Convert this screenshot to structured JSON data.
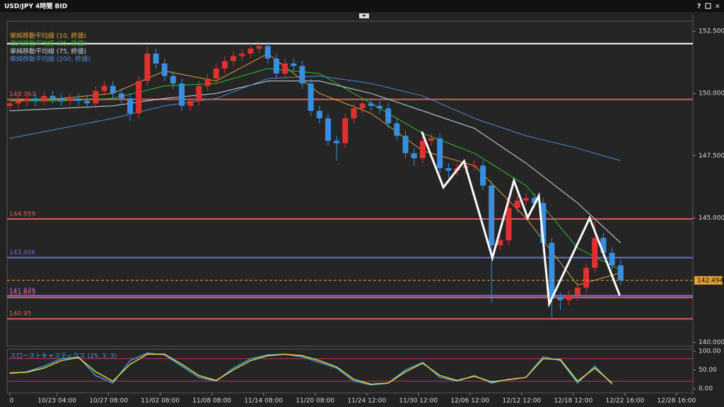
{
  "window": {
    "title": "USD/JPY 4時間 BID",
    "help": "?"
  },
  "chart_data": [
    {
      "type": "candlestick",
      "up_color": "#e03030",
      "down_color": "#3a8ee0",
      "open": [
        149.5,
        149.6,
        149.7,
        149.8,
        149.7,
        149.9,
        149.8,
        149.7,
        149.8,
        149.7,
        149.6,
        150.1,
        150.3,
        150.0,
        149.8,
        149.2,
        150.5,
        151.6,
        151.2,
        150.7,
        150.4,
        149.5,
        149.7,
        150.3,
        150.6,
        151.0,
        151.3,
        151.5,
        151.6,
        151.8,
        151.9,
        151.4,
        150.8,
        151.2,
        151.1,
        150.4,
        149.3,
        149.0,
        148.1,
        148.0,
        149.0,
        149.4,
        149.6,
        149.5,
        149.4,
        148.8,
        148.3,
        147.6,
        147.4,
        148.1,
        148.2,
        147.0,
        146.9,
        147.0,
        147.1,
        147.1,
        146.3,
        143.9,
        144.1,
        145.4,
        145.7,
        145.8,
        145.6,
        144.0,
        141.8,
        141.7,
        141.9,
        142.2,
        143.0,
        144.2,
        143.6,
        143.1
      ],
      "high": [
        149.8,
        149.9,
        150.0,
        150.0,
        150.1,
        150.1,
        150.0,
        150.0,
        150.0,
        149.9,
        150.3,
        150.5,
        150.5,
        150.2,
        150.0,
        150.7,
        151.9,
        151.8,
        151.4,
        150.9,
        150.6,
        149.9,
        150.5,
        150.8,
        151.2,
        151.5,
        151.7,
        151.8,
        152.0,
        152.1,
        152.1,
        151.6,
        151.4,
        151.4,
        151.3,
        150.6,
        149.5,
        149.2,
        148.3,
        149.2,
        149.6,
        149.8,
        149.8,
        149.7,
        149.6,
        149.0,
        148.5,
        147.8,
        148.3,
        148.4,
        148.4,
        147.2,
        147.2,
        147.3,
        147.3,
        147.3,
        146.5,
        144.3,
        145.6,
        145.9,
        146.0,
        146.0,
        145.8,
        144.2,
        142.0,
        142.1,
        142.4,
        143.2,
        144.9,
        144.4,
        143.8,
        143.3
      ],
      "low": [
        149.3,
        149.4,
        149.5,
        149.5,
        149.5,
        149.6,
        149.5,
        149.5,
        149.5,
        149.4,
        149.4,
        149.9,
        149.8,
        149.6,
        148.9,
        149.0,
        150.3,
        151.0,
        150.5,
        150.2,
        149.3,
        149.3,
        149.5,
        150.1,
        150.4,
        150.8,
        151.1,
        151.3,
        151.4,
        151.6,
        151.2,
        150.6,
        150.6,
        150.9,
        150.2,
        149.1,
        148.8,
        147.9,
        147.3,
        147.8,
        148.8,
        149.2,
        149.3,
        149.2,
        148.6,
        148.1,
        147.4,
        147.1,
        147.2,
        147.9,
        146.8,
        146.6,
        146.7,
        146.8,
        146.9,
        146.1,
        141.6,
        143.7,
        143.9,
        145.2,
        145.5,
        145.4,
        143.8,
        141.0,
        141.3,
        141.5,
        141.7,
        142.0,
        142.8,
        143.4,
        142.9,
        142.3
      ],
      "close": [
        149.6,
        149.7,
        149.8,
        149.7,
        149.9,
        149.8,
        149.7,
        149.8,
        149.7,
        149.6,
        150.1,
        150.3,
        150.0,
        149.8,
        149.2,
        150.5,
        151.6,
        151.2,
        150.7,
        150.4,
        149.5,
        149.7,
        150.3,
        150.6,
        151.0,
        151.3,
        151.5,
        151.6,
        151.8,
        151.9,
        151.4,
        150.8,
        151.2,
        151.1,
        150.4,
        149.3,
        149.0,
        148.1,
        148.0,
        149.0,
        149.4,
        149.6,
        149.5,
        149.4,
        148.8,
        148.3,
        147.6,
        147.4,
        148.1,
        148.2,
        147.0,
        146.9,
        147.0,
        147.1,
        147.1,
        146.3,
        143.9,
        144.1,
        145.4,
        145.7,
        145.8,
        145.6,
        144.0,
        141.8,
        141.7,
        141.9,
        142.2,
        143.0,
        144.2,
        143.6,
        143.1,
        142.494
      ],
      "moving_averages": [
        {
          "name": "単純移動平均線 (10, 終値)",
          "color": "#e0a030",
          "x": [
            0,
            6,
            12,
            18,
            24,
            30,
            36,
            42,
            48,
            54,
            60,
            66,
            71
          ],
          "values": [
            149.7,
            149.8,
            150.0,
            150.9,
            150.5,
            151.6,
            150.0,
            149.2,
            147.7,
            147.1,
            145.0,
            142.3,
            142.8
          ]
        },
        {
          "name": "単純移動平均線 (25, 終値)",
          "color": "#30c030",
          "x": [
            0,
            6,
            12,
            18,
            24,
            30,
            36,
            42,
            48,
            54,
            60,
            66,
            71
          ],
          "values": [
            149.7,
            149.7,
            149.8,
            150.3,
            150.4,
            151.0,
            150.8,
            149.6,
            148.4,
            147.6,
            146.3,
            143.8,
            142.9
          ]
        },
        {
          "name": "単純移動平均線 (75, 終値)",
          "color": "#c8d8e8",
          "x": [
            0,
            6,
            12,
            18,
            24,
            30,
            36,
            42,
            48,
            54,
            60,
            66,
            71
          ],
          "values": [
            149.3,
            149.4,
            149.5,
            149.8,
            150.0,
            150.5,
            150.5,
            150.0,
            149.3,
            148.6,
            147.2,
            145.6,
            144.0
          ]
        },
        {
          "name": "単純移動平均線 (200, 終値)",
          "color": "#4a8ad8",
          "x": [
            0,
            6,
            12,
            18,
            24,
            30,
            36,
            42,
            48,
            54,
            60,
            66,
            71
          ],
          "values": [
            148.2,
            148.6,
            149.0,
            149.5,
            149.8,
            150.6,
            150.7,
            150.4,
            149.9,
            149.0,
            148.3,
            147.8,
            147.3
          ]
        }
      ],
      "levels": [
        {
          "value": 152.0,
          "color": "#ffffff"
        },
        {
          "value": 149.763,
          "color": "#e05a5a"
        },
        {
          "value": 144.959,
          "color": "#e05a5a"
        },
        {
          "value": 143.406,
          "color": "#6a6ae0"
        },
        {
          "value": 141.879,
          "color": "#8a6ae0"
        },
        {
          "value": 141.803,
          "color": "#e05a5a"
        },
        {
          "value": 140.95,
          "color": "#e05a5a"
        }
      ],
      "current_price": 142.494,
      "current_color": "#e0a030",
      "zigzag": {
        "color": "#ffffff",
        "x": [
          47.9,
          50.4,
          52.8,
          56.1,
          58.6,
          60.2,
          61.5,
          62.7,
          67.4,
          70.9
        ],
        "values": [
          148.47,
          146.23,
          147.28,
          143.4,
          146.49,
          145.01,
          145.89,
          141.55,
          145.0,
          141.89
        ]
      },
      "ylim": [
        139.85,
        152.9
      ],
      "yticks": [
        {
          "value": 140,
          "label": "140.000"
        },
        {
          "value": 145,
          "label": "145.000"
        },
        {
          "value": 147.5,
          "label": "147.500"
        },
        {
          "value": 150,
          "label": "150.000"
        },
        {
          "value": 152.5,
          "label": "152.500"
        }
      ],
      "xlim": [
        -0.3,
        79.4
      ],
      "xticks": [
        0,
        {
          "value": 5.5,
          "label": "10/23 04:00"
        },
        {
          "value": 11.5,
          "label": "10/27 08:00"
        },
        {
          "value": 17.5,
          "label": "11/02 08:00"
        },
        {
          "value": 23.5,
          "label": "11/08 08:00"
        },
        {
          "value": 29.5,
          "label": "11/14 08:00"
        },
        {
          "value": 35.5,
          "label": "11/20 08:00"
        },
        {
          "value": 41.5,
          "label": "11/24 12:00"
        },
        {
          "value": 47.5,
          "label": "11/30 12:00"
        },
        {
          "value": 53.5,
          "label": "12/06 12:00"
        },
        {
          "value": 59.5,
          "label": "12/12 12:00"
        },
        {
          "value": 65.5,
          "label": "12/18 12:00"
        },
        {
          "value": 71.5,
          "label": "12/22 16:00"
        },
        {
          "value": 77.5,
          "label": "12/28 16:00"
        }
      ]
    },
    {
      "type": "line",
      "title": "スローストキャスティクス (25, 3, 3)",
      "ylim": [
        -11.3,
        105.7
      ],
      "yticks": [
        {
          "value": 0,
          "label": "0.00"
        },
        {
          "value": 50,
          "label": "50.00"
        },
        {
          "value": 100,
          "label": "100.00"
        }
      ],
      "levels": [
        80,
        20
      ],
      "level_color": "#c03060",
      "series": [
        {
          "color": "#3aa0e0",
          "x": [
            0,
            2,
            4,
            6,
            8,
            10,
            12,
            14,
            16,
            18,
            20,
            22,
            24,
            26,
            28,
            30,
            32,
            34,
            36,
            38,
            40,
            42,
            44,
            46,
            48,
            50,
            52,
            54,
            56,
            58,
            60,
            62,
            64,
            66,
            68,
            70
          ],
          "values": [
            40,
            45,
            60,
            80,
            85,
            35,
            15,
            75,
            95,
            90,
            60,
            30,
            20,
            55,
            80,
            90,
            92,
            85,
            70,
            55,
            20,
            10,
            15,
            50,
            70,
            30,
            20,
            35,
            15,
            25,
            30,
            85,
            75,
            15,
            60,
            12
          ]
        },
        {
          "color": "#e0d040",
          "x": [
            0,
            2,
            4,
            6,
            8,
            10,
            12,
            14,
            16,
            18,
            20,
            22,
            24,
            26,
            28,
            30,
            32,
            34,
            36,
            38,
            40,
            42,
            44,
            46,
            48,
            50,
            52,
            54,
            56,
            58,
            60,
            62,
            64,
            66,
            68,
            70
          ],
          "values": [
            42,
            44,
            55,
            75,
            83,
            45,
            20,
            65,
            92,
            92,
            65,
            35,
            22,
            50,
            75,
            88,
            92,
            88,
            75,
            58,
            25,
            12,
            15,
            45,
            68,
            35,
            22,
            33,
            18,
            24,
            30,
            80,
            78,
            20,
            55,
            15
          ]
        }
      ]
    }
  ]
}
